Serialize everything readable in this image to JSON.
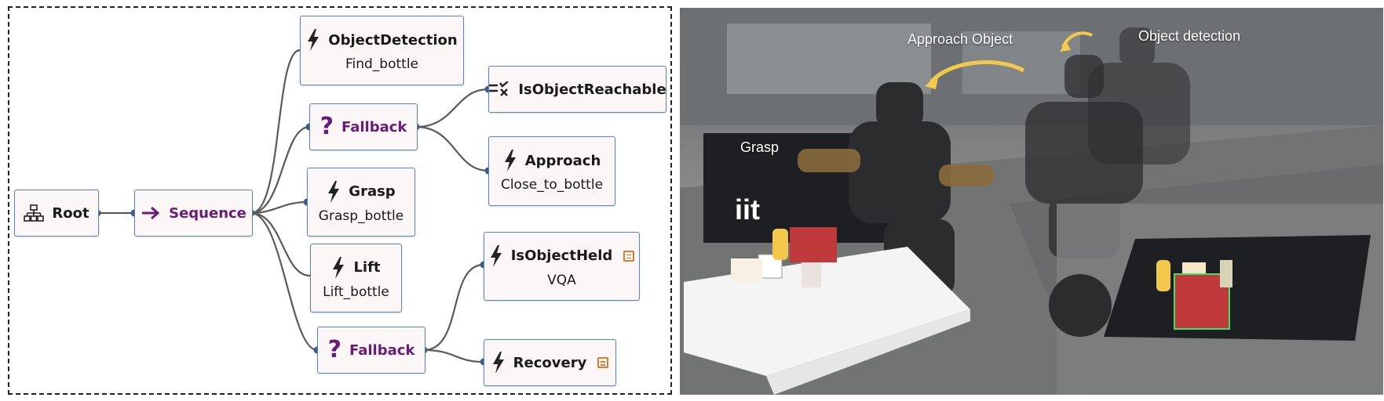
{
  "tree": {
    "root": {
      "label": "Root"
    },
    "sequence": {
      "label": "Sequence"
    },
    "object_detection": {
      "title": "ObjectDetection",
      "subtitle": "Find_bottle"
    },
    "fallback_top": {
      "label": "Fallback"
    },
    "is_object_reachable": {
      "title": "IsObjectReachable"
    },
    "approach": {
      "title": "Approach",
      "subtitle": "Close_to_bottle"
    },
    "grasp": {
      "title": "Grasp",
      "subtitle": "Grasp_bottle"
    },
    "lift": {
      "title": "Lift",
      "subtitle": "Lift_bottle"
    },
    "is_object_held": {
      "title": "IsObjectHeld",
      "subtitle": "VQA"
    },
    "fallback_bottom": {
      "label": "Fallback"
    },
    "recovery": {
      "title": "Recovery"
    }
  },
  "photo": {
    "labels": {
      "approach_object": "Approach Object",
      "object_detection": "Object detection",
      "grasp": "Grasp"
    },
    "colors": {
      "arrow": "#f2c94c",
      "table_cloth": "#f4f4f4"
    }
  },
  "colors": {
    "node_border": "#5b85b8",
    "node_fill": "#fcf7f7",
    "control_text": "#6a1b7a",
    "edge": "#5a5a5a"
  }
}
